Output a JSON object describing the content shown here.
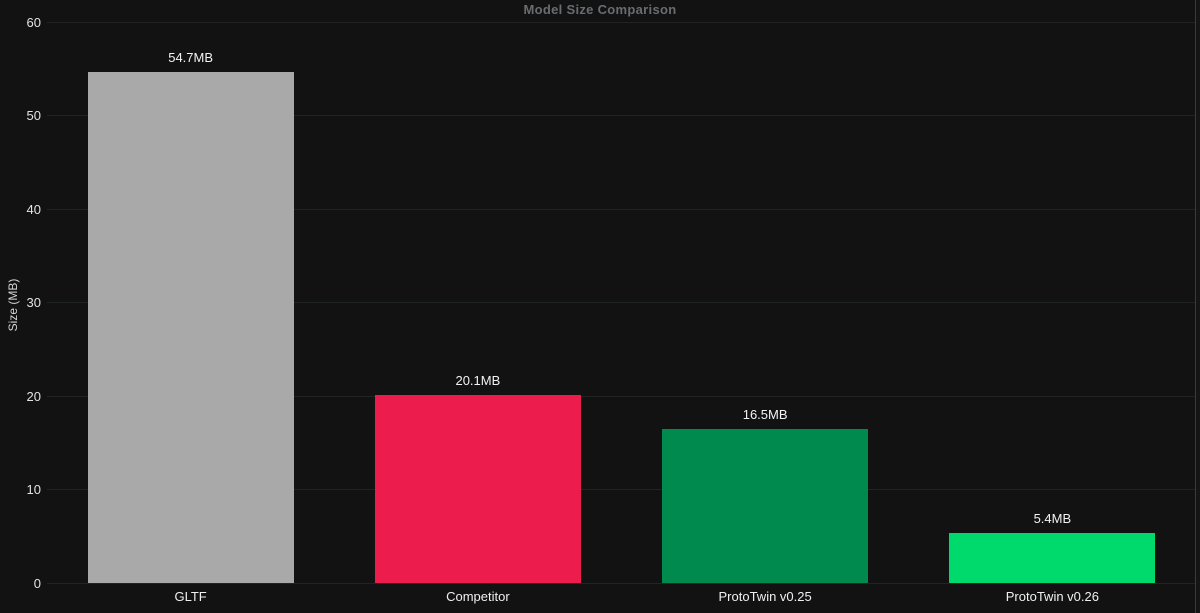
{
  "chart_data": {
    "type": "bar",
    "title": "Model Size Comparison",
    "xlabel": "",
    "ylabel": "Size (MB)",
    "categories": [
      "GLTF",
      "Competitor",
      "ProtoTwin v0.25",
      "ProtoTwin v0.26"
    ],
    "values": [
      54.7,
      20.1,
      16.5,
      5.4
    ],
    "value_labels": [
      "54.7MB",
      "20.1MB",
      "16.5MB",
      "5.4MB"
    ],
    "bar_colors": [
      "#a9a9a9",
      "#ec1d4d",
      "#008a4d",
      "#00d96b"
    ],
    "ylim": [
      0,
      60
    ],
    "yticks": [
      0,
      10,
      20,
      30,
      40,
      50,
      60
    ],
    "grid": true,
    "legend": false
  },
  "theme": {
    "background": "#121212",
    "gridline": "#212425",
    "title_color": "#686d72",
    "text_color": "#f0f0f0",
    "tick_color": "#e3e3e3"
  }
}
